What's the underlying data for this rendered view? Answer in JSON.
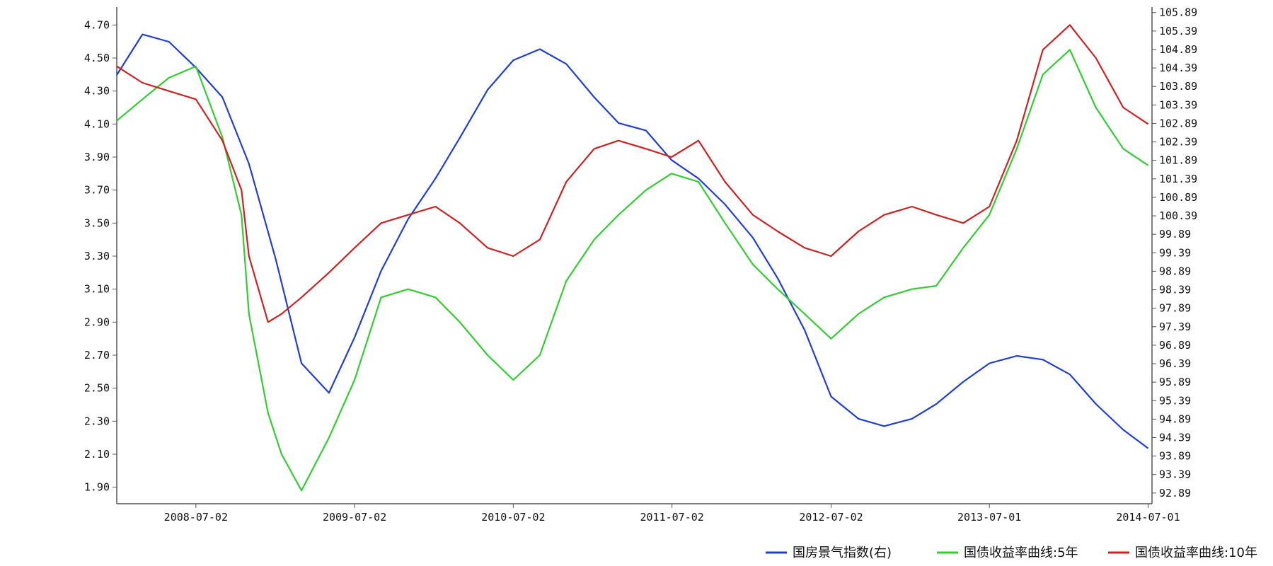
{
  "chart_data": {
    "type": "line",
    "title": "",
    "xlabel": "",
    "ylabel": "",
    "legend_position": "bottom-right",
    "grid": false,
    "x_ticks": [
      "2008-07-02",
      "2009-07-02",
      "2010-07-02",
      "2011-07-02",
      "2012-07-02",
      "2013-07-01",
      "2014-07-01"
    ],
    "x_range": [
      "2008-01-02",
      "2014-07-10"
    ],
    "y_left": {
      "ticks": [
        "1.90",
        "2.10",
        "2.30",
        "2.50",
        "2.70",
        "2.90",
        "3.10",
        "3.30",
        "3.50",
        "3.70",
        "3.90",
        "4.10",
        "4.30",
        "4.50",
        "4.70"
      ],
      "range": [
        1.8,
        4.8
      ]
    },
    "y_right": {
      "ticks": [
        "92.89",
        "93.39",
        "93.89",
        "94.39",
        "94.89",
        "95.39",
        "95.89",
        "96.39",
        "96.89",
        "97.39",
        "97.89",
        "98.39",
        "98.89",
        "99.39",
        "99.89",
        "100.39",
        "100.89",
        "101.39",
        "101.89",
        "102.39",
        "102.89",
        "103.39",
        "103.89",
        "104.39",
        "104.89",
        "105.39",
        "105.89"
      ],
      "range": [
        92.6,
        106.0
      ]
    },
    "series": [
      {
        "name": "国房景气指数(右)",
        "axis": "right",
        "color": "#1f3fcf",
        "x": [
          "2008-01-02",
          "2008-03-01",
          "2008-05-01",
          "2008-07-02",
          "2008-09-01",
          "2008-11-01",
          "2009-01-02",
          "2009-03-02",
          "2009-05-04",
          "2009-07-02",
          "2009-09-01",
          "2009-11-02",
          "2010-01-04",
          "2010-03-01",
          "2010-05-04",
          "2010-07-02",
          "2010-09-01",
          "2010-11-01",
          "2011-01-04",
          "2011-03-01",
          "2011-05-03",
          "2011-07-01",
          "2011-09-01",
          "2011-11-01",
          "2012-01-04",
          "2012-03-01",
          "2012-05-02",
          "2012-07-02",
          "2012-09-03",
          "2012-11-01",
          "2013-01-04",
          "2013-03-01",
          "2013-05-02",
          "2013-07-01",
          "2013-09-02",
          "2013-11-01",
          "2014-01-02",
          "2014-03-03",
          "2014-05-05",
          "2014-07-01"
        ],
        "values": [
          104.2,
          105.3,
          105.1,
          104.4,
          103.6,
          101.8,
          99.2,
          96.4,
          95.6,
          97.1,
          98.9,
          100.3,
          101.4,
          102.5,
          103.8,
          104.6,
          104.9,
          104.5,
          103.6,
          102.9,
          102.7,
          101.9,
          101.4,
          100.7,
          99.8,
          98.7,
          97.3,
          95.5,
          94.9,
          94.7,
          94.9,
          95.3,
          95.9,
          96.4,
          96.6,
          96.5,
          96.1,
          95.3,
          94.6,
          94.1
        ]
      },
      {
        "name": "国债收益率曲线:5年",
        "axis": "left",
        "color": "#33cc33",
        "x": [
          "2008-01-02",
          "2008-03-01",
          "2008-05-01",
          "2008-07-02",
          "2008-09-01",
          "2008-10-15",
          "2008-11-01",
          "2008-12-15",
          "2009-01-15",
          "2009-03-02",
          "2009-05-04",
          "2009-07-02",
          "2009-09-01",
          "2009-11-02",
          "2010-01-04",
          "2010-03-01",
          "2010-05-04",
          "2010-07-02",
          "2010-09-01",
          "2010-11-01",
          "2011-01-04",
          "2011-03-01",
          "2011-05-03",
          "2011-07-01",
          "2011-09-01",
          "2011-11-01",
          "2012-01-04",
          "2012-03-01",
          "2012-05-02",
          "2012-07-02",
          "2012-09-03",
          "2012-11-01",
          "2013-01-04",
          "2013-03-01",
          "2013-05-02",
          "2013-07-01",
          "2013-09-02",
          "2013-11-01",
          "2014-01-02",
          "2014-03-03",
          "2014-05-05",
          "2014-07-01"
        ],
        "values": [
          4.12,
          4.25,
          4.38,
          4.45,
          4.02,
          3.55,
          2.95,
          2.35,
          2.1,
          1.88,
          2.2,
          2.55,
          3.05,
          3.1,
          3.05,
          2.9,
          2.7,
          2.55,
          2.7,
          3.15,
          3.4,
          3.55,
          3.7,
          3.8,
          3.75,
          3.5,
          3.25,
          3.1,
          2.95,
          2.8,
          2.95,
          3.05,
          3.1,
          3.12,
          3.35,
          3.55,
          3.95,
          4.4,
          4.55,
          4.2,
          3.95,
          3.85
        ]
      },
      {
        "name": "国债收益率曲线:10年",
        "axis": "left",
        "color": "#cc2222",
        "x": [
          "2008-01-02",
          "2008-03-01",
          "2008-05-01",
          "2008-07-02",
          "2008-09-01",
          "2008-10-15",
          "2008-11-01",
          "2008-12-15",
          "2009-01-15",
          "2009-03-02",
          "2009-05-04",
          "2009-07-02",
          "2009-09-01",
          "2009-11-02",
          "2010-01-04",
          "2010-03-01",
          "2010-05-04",
          "2010-07-02",
          "2010-09-01",
          "2010-11-01",
          "2011-01-04",
          "2011-03-01",
          "2011-05-03",
          "2011-07-01",
          "2011-09-01",
          "2011-11-01",
          "2012-01-04",
          "2012-03-01",
          "2012-05-02",
          "2012-07-02",
          "2012-09-03",
          "2012-11-01",
          "2013-01-04",
          "2013-03-01",
          "2013-05-02",
          "2013-07-01",
          "2013-09-02",
          "2013-11-01",
          "2014-01-02",
          "2014-03-03",
          "2014-05-05",
          "2014-07-01"
        ],
        "values": [
          4.45,
          4.35,
          4.3,
          4.25,
          4.0,
          3.7,
          3.3,
          2.9,
          2.95,
          3.05,
          3.2,
          3.35,
          3.5,
          3.55,
          3.6,
          3.5,
          3.35,
          3.3,
          3.4,
          3.75,
          3.95,
          4.0,
          3.95,
          3.9,
          4.0,
          3.75,
          3.55,
          3.45,
          3.35,
          3.3,
          3.45,
          3.55,
          3.6,
          3.55,
          3.5,
          3.6,
          4.0,
          4.55,
          4.7,
          4.5,
          4.2,
          4.1
        ]
      }
    ]
  }
}
